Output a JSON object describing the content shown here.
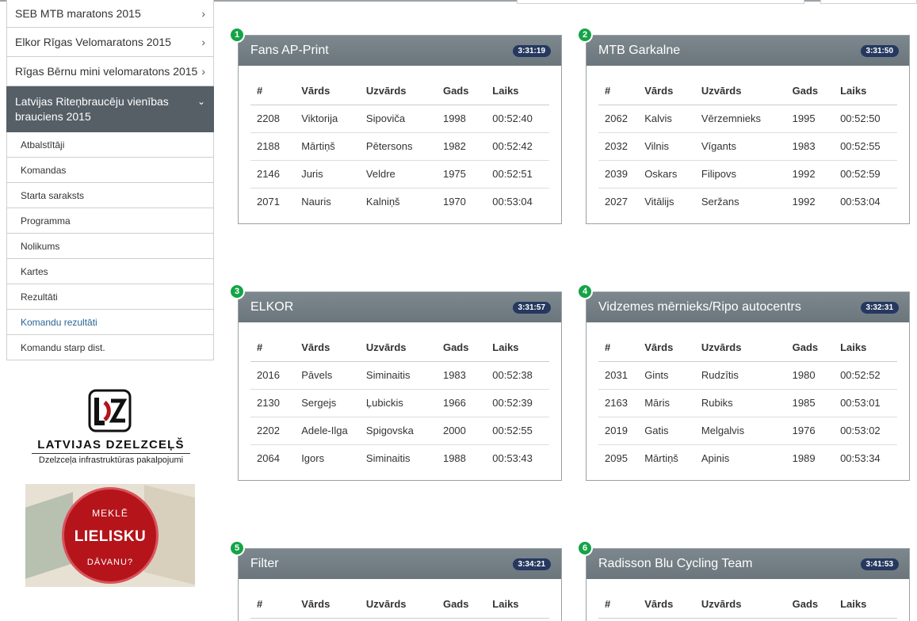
{
  "sidebar": {
    "items": [
      {
        "label": "SEB MTB maratons 2015"
      },
      {
        "label": "Elkor Rīgas Velomaratons 2015"
      },
      {
        "label": "Rīgas Bērnu mini velomaratons 2015"
      }
    ],
    "active": {
      "label": "Latvijas Riteņbraucēju vienības brauciens 2015"
    },
    "sub_items": [
      {
        "label": "Atbalstītāji"
      },
      {
        "label": "Komandas"
      },
      {
        "label": "Starta saraksts"
      },
      {
        "label": "Programma"
      },
      {
        "label": "Nolikums"
      },
      {
        "label": "Kartes"
      },
      {
        "label": "Rezultāti"
      },
      {
        "label": "Komandu rezultāti"
      },
      {
        "label": "Komandu starp dist."
      }
    ]
  },
  "ads": {
    "ldz": {
      "title": "LATVIJAS DZELZCEĻŠ",
      "subtitle": "Dzelzceļa infrastruktūras pakalpojumi"
    },
    "banner": {
      "line1": "MEKLĒ",
      "line2": "LIELISKU",
      "line3": "DĀVANU?"
    }
  },
  "columns": [
    "#",
    "Vārds",
    "Uzvārds",
    "Gads",
    "Laiks"
  ],
  "teams": [
    {
      "rank": "1",
      "name": "Fans AP-Print",
      "time": "3:31:19",
      "rows": [
        [
          "2208",
          "Viktorija",
          "Sipoviča",
          "1998",
          "00:52:40"
        ],
        [
          "2188",
          "Mārtiņš",
          "Pētersons",
          "1982",
          "00:52:42"
        ],
        [
          "2146",
          "Juris",
          "Veldre",
          "1975",
          "00:52:51"
        ],
        [
          "2071",
          "Nauris",
          "Kalniņš",
          "1970",
          "00:53:04"
        ]
      ]
    },
    {
      "rank": "2",
      "name": "MTB Garkalne",
      "time": "3:31:50",
      "rows": [
        [
          "2062",
          "Kalvis",
          "Vērzemnieks",
          "1995",
          "00:52:50"
        ],
        [
          "2032",
          "Vilnis",
          "Vīgants",
          "1983",
          "00:52:55"
        ],
        [
          "2039",
          "Oskars",
          "Filipovs",
          "1992",
          "00:52:59"
        ],
        [
          "2027",
          "Vitālijs",
          "Seržans",
          "1992",
          "00:53:04"
        ]
      ]
    },
    {
      "rank": "3",
      "name": "ELKOR",
      "time": "3:31:57",
      "rows": [
        [
          "2016",
          "Pāvels",
          "Siminaitis",
          "1983",
          "00:52:38"
        ],
        [
          "2130",
          "Sergejs",
          "Ļubickis",
          "1966",
          "00:52:39"
        ],
        [
          "2202",
          "Adele-Ilga",
          "Spigovska",
          "2000",
          "00:52:55"
        ],
        [
          "2064",
          "Igors",
          "Siminaitis",
          "1988",
          "00:53:43"
        ]
      ]
    },
    {
      "rank": "4",
      "name": "Vidzemes mērnieks/Ripo autocentrs",
      "time": "3:32:31",
      "rows": [
        [
          "2031",
          "Gints",
          "Rudzītis",
          "1980",
          "00:52:52"
        ],
        [
          "2163",
          "Māris",
          "Rubiks",
          "1985",
          "00:53:01"
        ],
        [
          "2019",
          "Gatis",
          "Melgalvis",
          "1976",
          "00:53:02"
        ],
        [
          "2095",
          "Mārtiņš",
          "Apinis",
          "1989",
          "00:53:34"
        ]
      ]
    },
    {
      "rank": "5",
      "name": "Filter",
      "time": "3:34:21",
      "rows": []
    },
    {
      "rank": "6",
      "name": "Radisson Blu Cycling Team",
      "time": "3:41:53",
      "rows": []
    }
  ],
  "colors": {
    "header": "#6f7a80",
    "badge": "#14a447",
    "time_pill": "#26385f",
    "active_link": "#2a6496"
  }
}
